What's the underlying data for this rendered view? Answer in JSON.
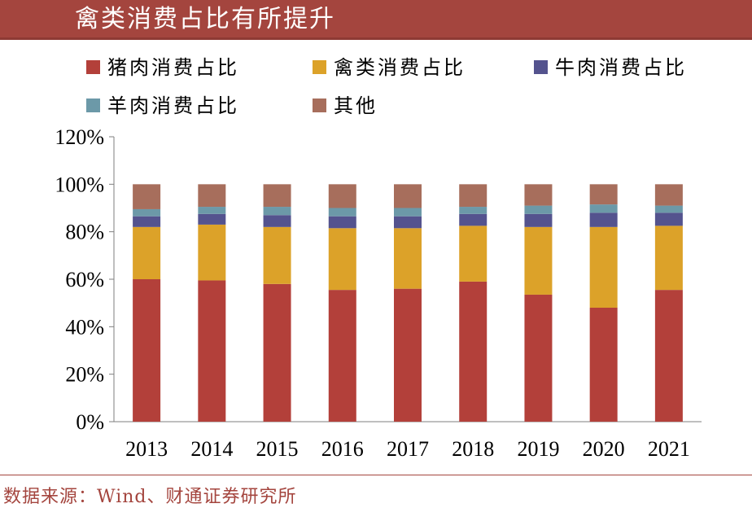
{
  "header": {
    "title": "禽类消费占比有所提升"
  },
  "footer": {
    "source": "数据来源：Wind、财通证券研究所"
  },
  "colors": {
    "title_bg": "#a4453e",
    "accent": "#a4453e"
  },
  "chart_data": {
    "type": "bar",
    "stacked": true,
    "categories": [
      "2013",
      "2014",
      "2015",
      "2016",
      "2017",
      "2018",
      "2019",
      "2020",
      "2021"
    ],
    "ylim": [
      0,
      120
    ],
    "yticks": [
      0,
      20,
      40,
      60,
      80,
      100,
      120
    ],
    "ytick_labels": [
      "0%",
      "20%",
      "40%",
      "60%",
      "80%",
      "100%",
      "120%"
    ],
    "grid": false,
    "legend_position": "top",
    "series": [
      {
        "name": "猪肉消费占比",
        "color": "#b3403a",
        "values": [
          60,
          59.5,
          58,
          55.5,
          56,
          59,
          53.5,
          48,
          55.5
        ]
      },
      {
        "name": "禽类消费占比",
        "color": "#dca229",
        "values": [
          22,
          23.5,
          24,
          26,
          25.5,
          23.5,
          28.5,
          34,
          27
        ]
      },
      {
        "name": "牛肉消费占比",
        "color": "#54538e",
        "values": [
          4.5,
          4.5,
          5,
          5,
          5,
          5,
          5.5,
          6,
          5.5
        ]
      },
      {
        "name": "羊肉消费占比",
        "color": "#6c99a8",
        "values": [
          3,
          3,
          3.5,
          3.5,
          3.5,
          3,
          3.5,
          3.5,
          3
        ]
      },
      {
        "name": "其他",
        "color": "#a76e5c",
        "values": [
          10.5,
          9.5,
          9.5,
          10,
          10,
          9.5,
          9,
          8.5,
          9
        ]
      }
    ]
  }
}
